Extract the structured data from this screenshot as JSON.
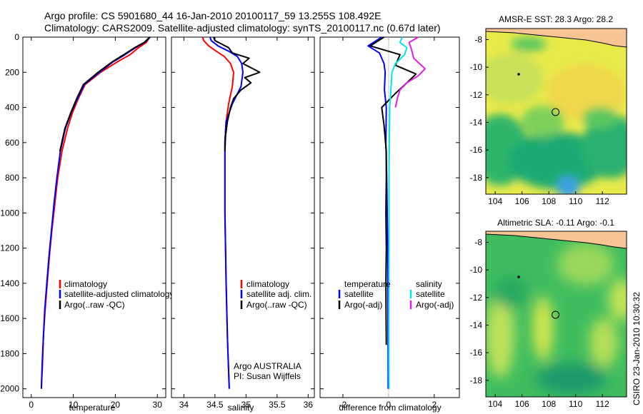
{
  "title_line1": "Argo profile: CS 5901680_44 16-Jan-2010 20100117_59 13.255S 108.492E",
  "title_line2": "Climatology: CARS2009. Satellite-adjusted climatology: synTS_20100117.nc (0.67d later)",
  "footer_credit": "CSIRO 23-Jan-2010 10:30:32",
  "colors": {
    "climatology": "#ff0000",
    "satellite": "#0000ff",
    "argo": "#000000",
    "satellite_salinity": "#00e5ee",
    "argo_salinity": "#e020e0"
  },
  "chart_data": [
    {
      "type": "line",
      "xlabel": "temperature",
      "ylabel": "",
      "xlim": [
        -2,
        32
      ],
      "ylim": [
        2050,
        0
      ],
      "xticks": [
        0,
        10,
        20,
        30
      ],
      "yticks": [
        0,
        200,
        400,
        600,
        800,
        1000,
        1200,
        1400,
        1600,
        1800,
        2000
      ],
      "legend": {
        "placement": "lower-middle",
        "entries": [
          "climatology",
          "satellite-adjusted climatology",
          "Argo(..raw -QC)"
        ]
      },
      "series": [
        {
          "name": "climatology",
          "color": "#ff0000",
          "x": [
            28.2,
            27.4,
            25.5,
            23.5,
            20.5,
            16.5,
            12.8,
            11.2,
            9.8,
            8.6,
            7.3,
            6.3,
            5.6,
            4.9,
            4.3,
            3.8,
            3.3,
            2.9,
            2.7,
            2.4
          ],
          "y": [
            0,
            30,
            60,
            100,
            140,
            200,
            270,
            350,
            430,
            520,
            650,
            800,
            950,
            1100,
            1250,
            1400,
            1550,
            1700,
            1850,
            2000
          ]
        },
        {
          "name": "satellite-adjusted climatology",
          "color": "#0000ff",
          "x": [
            28.3,
            27.0,
            24.8,
            22.3,
            19.5,
            16.2,
            12.6,
            11.0,
            9.5,
            8.1,
            6.9,
            6.1,
            5.4,
            4.8,
            4.2,
            3.7,
            3.2,
            2.9,
            2.6,
            2.4
          ],
          "y": [
            0,
            30,
            60,
            100,
            140,
            200,
            270,
            350,
            430,
            520,
            650,
            800,
            950,
            1100,
            1250,
            1400,
            1550,
            1700,
            1850,
            2000
          ]
        },
        {
          "name": "Argo(..raw -QC)",
          "color": "#000000",
          "x": [
            28.2,
            26.9,
            24.6,
            22.0,
            19.3,
            15.9,
            12.4,
            10.8,
            9.4,
            8.0,
            6.8
          ],
          "y": [
            0,
            30,
            60,
            100,
            140,
            200,
            270,
            350,
            430,
            520,
            650
          ]
        }
      ]
    },
    {
      "type": "line",
      "xlabel": "salinity",
      "ylabel": "",
      "xlim": [
        33.8,
        36.1
      ],
      "ylim": [
        2050,
        0
      ],
      "xticks": [
        34,
        34.5,
        35,
        35.5,
        36
      ],
      "legend": {
        "placement": "lower-right",
        "entries": [
          "climatology",
          "satellite adj. clim.",
          "Argo(..raw -QC)"
        ]
      },
      "annotations": [
        "Argo AUSTRALIA",
        "PI: Susan Wijffels"
      ],
      "series": [
        {
          "name": "climatology",
          "color": "#ff0000",
          "x": [
            34.3,
            34.32,
            34.4,
            34.52,
            34.65,
            34.75,
            34.8,
            34.78,
            34.72,
            34.68,
            34.66,
            34.66,
            34.66,
            34.67,
            34.68,
            34.69,
            34.7,
            34.71,
            34.72,
            34.73
          ],
          "y": [
            0,
            20,
            50,
            80,
            110,
            150,
            200,
            280,
            380,
            480,
            600,
            800,
            1000,
            1200,
            1400,
            1550,
            1700,
            1800,
            1900,
            2000
          ]
        },
        {
          "name": "satellite adj. clim.",
          "color": "#0000ff",
          "x": [
            34.42,
            34.44,
            34.55,
            34.72,
            34.86,
            34.93,
            34.95,
            34.92,
            34.78,
            34.68,
            34.66,
            34.66,
            34.66,
            34.67,
            34.68,
            34.69,
            34.7,
            34.71,
            34.72,
            34.73
          ],
          "y": [
            0,
            20,
            50,
            80,
            110,
            150,
            200,
            280,
            380,
            480,
            600,
            800,
            1000,
            1200,
            1400,
            1550,
            1700,
            1800,
            1900,
            2000
          ]
        },
        {
          "name": "Argo(..raw -QC)",
          "color": "#000000",
          "x": [
            34.48,
            34.5,
            34.72,
            34.78,
            35.05,
            34.95,
            35.22,
            34.98,
            35.08,
            34.92,
            34.8,
            34.75,
            34.7,
            34.67,
            34.66
          ],
          "y": [
            0,
            20,
            60,
            90,
            120,
            150,
            200,
            230,
            260,
            300,
            350,
            400,
            480,
            560,
            650
          ]
        }
      ]
    },
    {
      "type": "line",
      "xlabel": "difference from climatology",
      "ylabel": "",
      "xlim": [
        -3,
        3.1
      ],
      "ylim": [
        2050,
        0
      ],
      "xticks": [
        -2,
        0,
        2
      ],
      "legend": {
        "placement": "lower",
        "entries": [
          "temperature",
          "satellite",
          "Argo(-adj)",
          "salinity",
          "satellite",
          "Argo(-adj)"
        ]
      },
      "series": [
        {
          "name": "temperature satellite",
          "color": "#0000ff",
          "x": [
            -0.3,
            -0.9,
            -0.4,
            -0.2,
            -0.15,
            -0.18,
            -0.1,
            -0.12,
            -0.08,
            -0.06,
            -0.04,
            -0.03,
            -0.02,
            -0.02
          ],
          "y": [
            0,
            50,
            90,
            150,
            200,
            300,
            400,
            600,
            800,
            1000,
            1200,
            1500,
            1800,
            2000
          ]
        },
        {
          "name": "temperature Argo(-adj)",
          "color": "#000000",
          "x": [
            -0.2,
            -0.8,
            0.5,
            0.3,
            1.2,
            0.8,
            0.3,
            -0.3,
            -0.2,
            -0.1,
            -0.1,
            -0.12,
            -0.1,
            -0.12,
            -0.11,
            -0.1
          ],
          "y": [
            0,
            50,
            100,
            160,
            210,
            260,
            320,
            400,
            500,
            650,
            800,
            1000,
            1200,
            1400,
            1600,
            1750
          ]
        },
        {
          "name": "salinity satellite",
          "color": "#00e5ee",
          "x": [
            0.6,
            0.5,
            0.8,
            0.7,
            0.3,
            0.15,
            0.1,
            0.05,
            0.03,
            0.02,
            0.02,
            0.01,
            0.02
          ],
          "y": [
            0,
            30,
            60,
            100,
            150,
            200,
            300,
            400,
            600,
            800,
            1200,
            1600,
            2000
          ]
        },
        {
          "name": "salinity Argo(-adj)",
          "color": "#e020e0",
          "x": [
            1.3,
            0.9,
            1.0,
            1.1,
            1.6,
            1.3,
            0.8,
            0.5,
            0.4,
            0.3
          ],
          "y": [
            0,
            30,
            70,
            120,
            180,
            220,
            260,
            300,
            340,
            400
          ]
        }
      ]
    },
    {
      "type": "heatmap",
      "title": "AMSR-E SST: 28.3 Argo: 28.2",
      "xlim": [
        103.3,
        113.8
      ],
      "ylim": [
        -19.2,
        -7.2
      ],
      "xticks": [
        104,
        106,
        108,
        110,
        112
      ],
      "yticks": [
        -8,
        -10,
        -12,
        -14,
        -16,
        -18
      ],
      "marker": {
        "x": 108.5,
        "y": -13.25
      },
      "sst_value": 28.3,
      "argo_value": 28.2
    },
    {
      "type": "heatmap",
      "title": "Altimetric SLA: -0.11 Argo: -0.1",
      "xlim": [
        103.3,
        113.8
      ],
      "ylim": [
        -19.2,
        -7.2
      ],
      "xticks": [
        104,
        106,
        108,
        110,
        112
      ],
      "yticks": [
        -8,
        -10,
        -12,
        -14,
        -16,
        -18
      ],
      "marker": {
        "x": 108.5,
        "y": -13.25
      },
      "sla_value": -0.11,
      "argo_value": -0.1
    }
  ]
}
